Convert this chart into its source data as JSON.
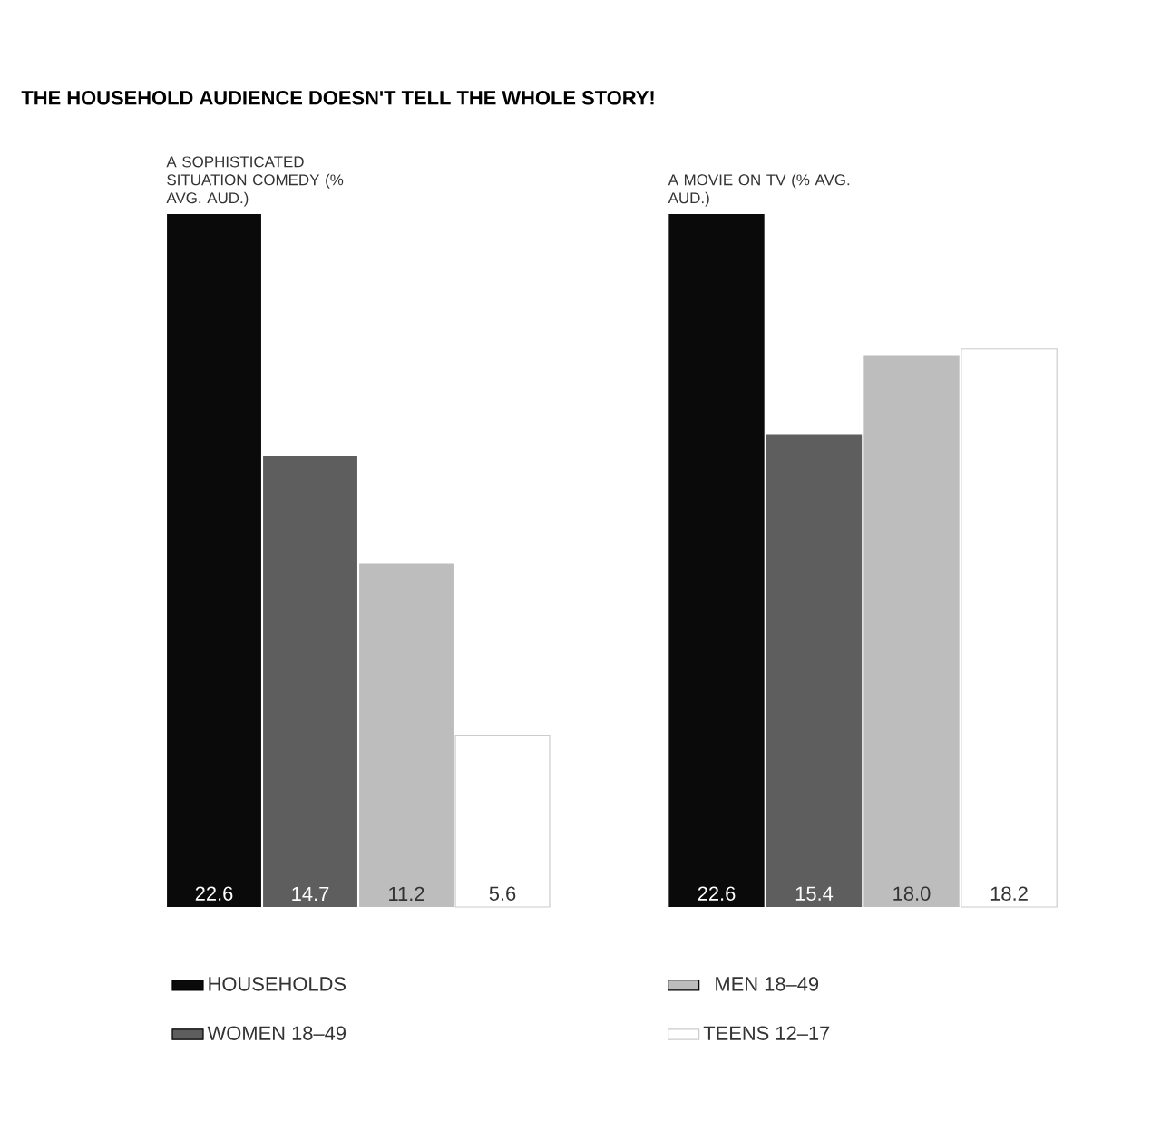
{
  "chart_data": [
    {
      "type": "bar",
      "title": "A SOPHISTICATED SITUATION COMEDY (% AVG. AUD.)",
      "annotations": [
        "THE HOUSEHOLD AUDIENCE DOESN'T TELL THE WHOLE STORY!"
      ],
      "categories": [
        null
      ],
      "data_labels": true,
      "legend": "bottom",
      "series": [
        {
          "name": "HOUSEHOLDS",
          "color": "#0a0a0a",
          "values": [
            22.6
          ]
        },
        {
          "name": "WOMEN 18–49",
          "color": "#5e5e5e",
          "values": [
            14.7
          ]
        },
        {
          "name": "MEN 18–49",
          "color": "#bdbdbd",
          "values": [
            11.2
          ]
        },
        {
          "name": "TEENS 12–17",
          "color": "#ffffff",
          "values": [
            5.6
          ]
        }
      ]
    },
    {
      "type": "bar",
      "title": "A MOVIE ON TV (% AVG. AUD.)",
      "categories": [
        null
      ],
      "series": [
        {
          "color": "#0a0a0a",
          "values": [
            22.6
          ],
          "value_labels": [
            "22.6"
          ]
        },
        {
          "color": "#5e5e5e",
          "values": [
            15.4
          ],
          "value_labels": [
            "15.4"
          ]
        },
        {
          "color": "#bdbdbd",
          "values": [
            18.0
          ],
          "value_labels": [
            "18.0"
          ]
        },
        {
          "color": "#ffffff",
          "values": [
            18.2
          ],
          "value_labels": [
            "18.2"
          ]
        }
      ]
    }
  ]
}
